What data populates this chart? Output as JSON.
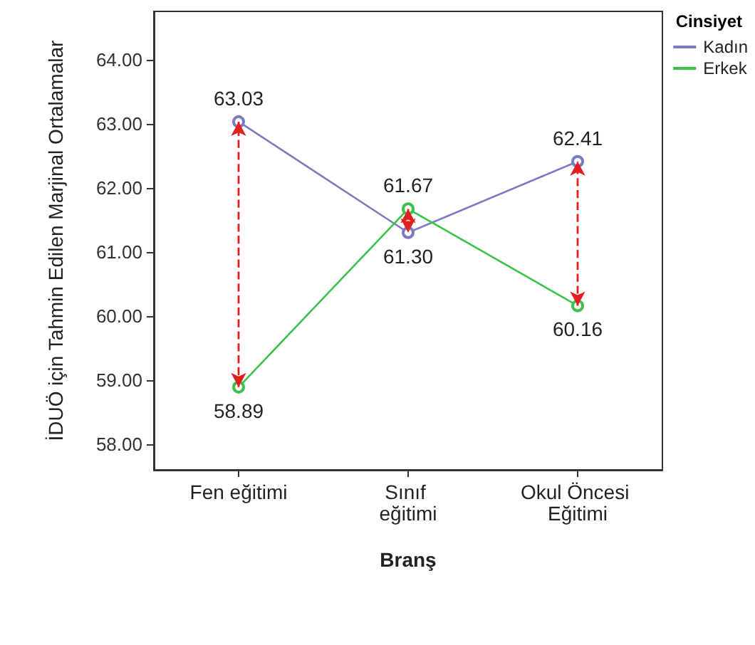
{
  "chart_data": {
    "type": "line",
    "xlabel": "Branş",
    "ylabel": "İDUÖ için Tahmin Edilen Marjinal Ortalamalar",
    "legend_title": "Cinsiyet",
    "categories": [
      "Fen eğitimi",
      "Sınıf eğitimi",
      "Okul Öncesi Eğitimi"
    ],
    "series": [
      {
        "name": "Kadın",
        "color": "#7b7bc4",
        "values": [
          63.03,
          61.3,
          62.41
        ],
        "value_labels": [
          "63.03",
          "61.30",
          "62.41"
        ]
      },
      {
        "name": "Erkek",
        "color": "#3cc24a",
        "values": [
          58.89,
          61.67,
          60.16
        ],
        "value_labels": [
          "58.89",
          "61.67",
          "60.16"
        ]
      }
    ],
    "ylim": [
      57.6,
      64.75
    ],
    "yticks": [
      {
        "value": 58,
        "label": "58.00"
      },
      {
        "value": 59,
        "label": "59.00"
      },
      {
        "value": 60,
        "label": "60.00"
      },
      {
        "value": 61,
        "label": "61.00"
      },
      {
        "value": 62,
        "label": "62.00"
      },
      {
        "value": 63,
        "label": "63.00"
      },
      {
        "value": 64,
        "label": "64.00"
      }
    ],
    "grid": false,
    "legend": "top right",
    "marker": "circle",
    "line_style": "solid"
  }
}
